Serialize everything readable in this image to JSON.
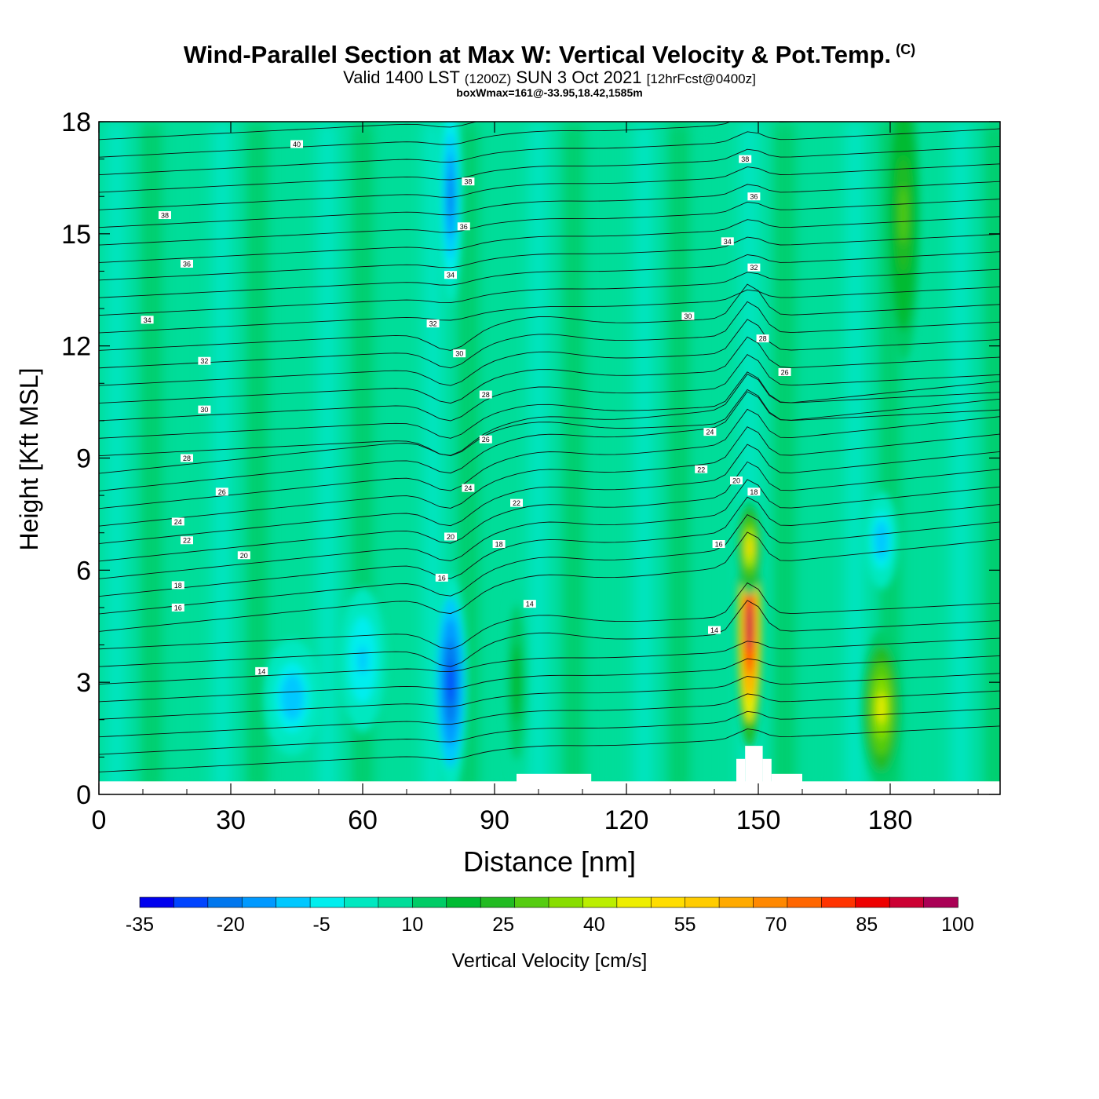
{
  "header": {
    "title": "Wind-Parallel Section at Max W: Vertical Velocity & Pot.Temp.",
    "copyright": "(C)",
    "valid_prefix": "Valid 1400 LST",
    "valid_zulu": "(1200Z)",
    "valid_date": "SUN 3 Oct 2021",
    "forecast": "[12hrFcst@0400z]",
    "box_info": "boxWmax=161@-33.95,18.42,1585m"
  },
  "chart_data": {
    "type": "heatmap",
    "xlabel": "Distance [nm]",
    "ylabel": "Height [Kft MSL]",
    "xlim": [
      0,
      205
    ],
    "ylim": [
      0,
      18
    ],
    "x_ticks": [
      0,
      30,
      60,
      90,
      120,
      150,
      180
    ],
    "y_ticks": [
      0,
      3,
      6,
      9,
      12,
      15,
      18
    ],
    "colorbar": {
      "label": "Vertical Velocity [cm/s]",
      "min": -35,
      "max": 100,
      "step": 5,
      "tick_labels": [
        "-35",
        "-20",
        "-5",
        "10",
        "25",
        "40",
        "55",
        "70",
        "85",
        "100"
      ],
      "colors": [
        "#0000ee",
        "#0044ff",
        "#0077ee",
        "#0099ff",
        "#00c8ff",
        "#00eeee",
        "#00e8c0",
        "#00dd99",
        "#00cc66",
        "#00bb33",
        "#22bb22",
        "#55cc11",
        "#88dd00",
        "#bbee00",
        "#eeee00",
        "#ffdd00",
        "#ffcc00",
        "#ffaa00",
        "#ff8800",
        "#ff6600",
        "#ff3300",
        "#ee0000",
        "#cc0033",
        "#aa0055"
      ]
    },
    "terrain": [
      {
        "x0": 95,
        "x1": 112,
        "top": 0.55
      },
      {
        "x0": 145,
        "x1": 147,
        "top": 0.95
      },
      {
        "x0": 147,
        "x1": 151,
        "top": 1.3
      },
      {
        "x0": 151,
        "x1": 153,
        "top": 0.95
      },
      {
        "x0": 153,
        "x1": 160,
        "top": 0.55
      }
    ],
    "vertical_velocity_features": [
      {
        "x": 80,
        "y": 3.0,
        "value": -30,
        "sx": 3,
        "sy": 2.2
      },
      {
        "x": 80,
        "y": 16.0,
        "value": -25,
        "sx": 2,
        "sy": 2.2
      },
      {
        "x": 44,
        "y": 2.6,
        "value": -15,
        "sx": 5,
        "sy": 1.2
      },
      {
        "x": 60,
        "y": 3.6,
        "value": -12,
        "sx": 4,
        "sy": 1.5
      },
      {
        "x": 178,
        "y": 6.8,
        "value": -15,
        "sx": 3,
        "sy": 1.0
      },
      {
        "x": 148,
        "y": 4.5,
        "value": 85,
        "sx": 2.2,
        "sy": 2.5
      },
      {
        "x": 148,
        "y": 6.6,
        "value": 40,
        "sx": 2.2,
        "sy": 1.0
      },
      {
        "x": 178,
        "y": 2.3,
        "value": 35,
        "sx": 3.5,
        "sy": 1.6
      },
      {
        "x": 183,
        "y": 15.5,
        "value": 22,
        "sx": 3,
        "sy": 3.0
      },
      {
        "x": 95,
        "y": 3.0,
        "value": 12,
        "sx": 2,
        "sy": 2.0
      }
    ],
    "potential_temperature_labels": [
      {
        "x": 45,
        "y": 17.4,
        "label": "40"
      },
      {
        "x": 15,
        "y": 15.5,
        "label": "38"
      },
      {
        "x": 20,
        "y": 14.2,
        "label": "36"
      },
      {
        "x": 11,
        "y": 12.7,
        "label": "34"
      },
      {
        "x": 24,
        "y": 11.6,
        "label": "32"
      },
      {
        "x": 24,
        "y": 10.3,
        "label": "30"
      },
      {
        "x": 20,
        "y": 9.0,
        "label": "28"
      },
      {
        "x": 28,
        "y": 8.1,
        "label": "26"
      },
      {
        "x": 18,
        "y": 7.3,
        "label": "24"
      },
      {
        "x": 20,
        "y": 6.8,
        "label": "22"
      },
      {
        "x": 33,
        "y": 6.4,
        "label": "20"
      },
      {
        "x": 18,
        "y": 5.6,
        "label": "18"
      },
      {
        "x": 18,
        "y": 5.0,
        "label": "16"
      },
      {
        "x": 37,
        "y": 3.3,
        "label": "14"
      },
      {
        "x": 84,
        "y": 16.4,
        "label": "38"
      },
      {
        "x": 83,
        "y": 15.2,
        "label": "36"
      },
      {
        "x": 80,
        "y": 13.9,
        "label": "34"
      },
      {
        "x": 76,
        "y": 12.6,
        "label": "32"
      },
      {
        "x": 82,
        "y": 11.8,
        "label": "30"
      },
      {
        "x": 88,
        "y": 10.7,
        "label": "28"
      },
      {
        "x": 88,
        "y": 9.5,
        "label": "26"
      },
      {
        "x": 84,
        "y": 8.2,
        "label": "24"
      },
      {
        "x": 95,
        "y": 7.8,
        "label": "22"
      },
      {
        "x": 80,
        "y": 6.9,
        "label": "20"
      },
      {
        "x": 91,
        "y": 6.7,
        "label": "18"
      },
      {
        "x": 78,
        "y": 5.8,
        "label": "16"
      },
      {
        "x": 98,
        "y": 5.1,
        "label": "14"
      },
      {
        "x": 147,
        "y": 17.0,
        "label": "38"
      },
      {
        "x": 149,
        "y": 16.0,
        "label": "36"
      },
      {
        "x": 143,
        "y": 14.8,
        "label": "34"
      },
      {
        "x": 149,
        "y": 14.1,
        "label": "32"
      },
      {
        "x": 134,
        "y": 12.8,
        "label": "30"
      },
      {
        "x": 151,
        "y": 12.2,
        "label": "28"
      },
      {
        "x": 156,
        "y": 11.3,
        "label": "26"
      },
      {
        "x": 139,
        "y": 9.7,
        "label": "24"
      },
      {
        "x": 137,
        "y": 8.7,
        "label": "22"
      },
      {
        "x": 145,
        "y": 8.4,
        "label": "20"
      },
      {
        "x": 149,
        "y": 8.1,
        "label": "18"
      },
      {
        "x": 141,
        "y": 6.7,
        "label": "16"
      },
      {
        "x": 140,
        "y": 4.4,
        "label": "14"
      }
    ]
  }
}
